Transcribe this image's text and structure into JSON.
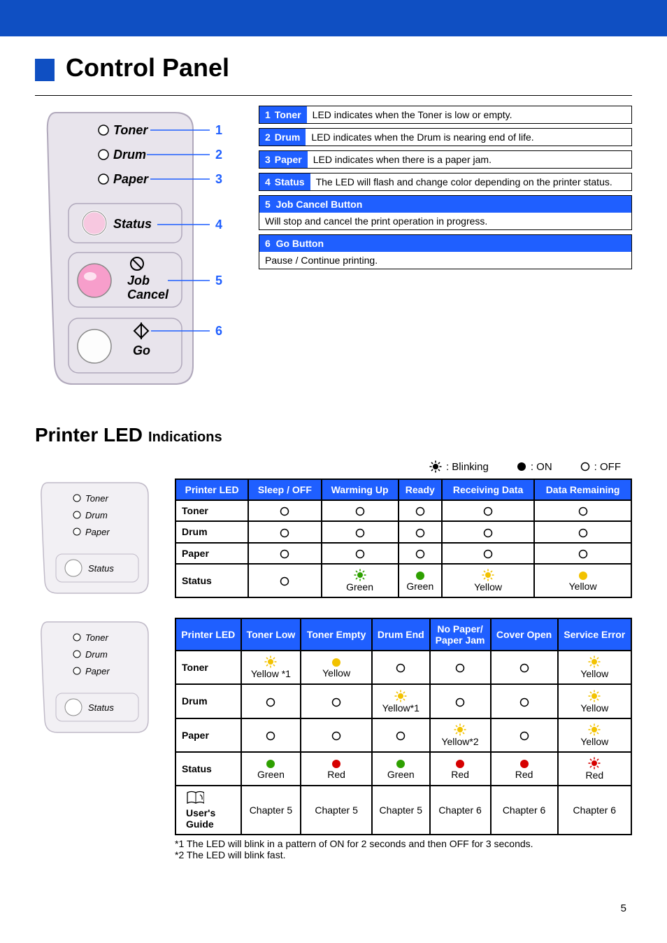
{
  "section_title": "Control Panel",
  "panel": {
    "labels": [
      "Toner",
      "Drum",
      "Paper",
      "Status",
      "Job",
      "Cancel",
      "Go"
    ],
    "label_style": {
      "font_style": "italic",
      "font_weight": "bold",
      "color": "#000"
    },
    "numbers": [
      "1",
      "2",
      "3",
      "4",
      "5",
      "6"
    ],
    "number_color": "#1f5fff",
    "body_fill": "#e8e4ec",
    "body_stroke": "#b0a8bb",
    "led_outline": "#000",
    "status_led_fill": "#f7c8e0",
    "button_fill": "#fdfdfd"
  },
  "descriptions": [
    {
      "num": "1",
      "label": "Toner",
      "text": "LED indicates when the Toner is low or empty."
    },
    {
      "num": "2",
      "label": "Drum",
      "text": "LED indicates when the Drum is nearing end of life."
    },
    {
      "num": "3",
      "label": "Paper",
      "text": "LED indicates when there is a paper jam."
    },
    {
      "num": "4",
      "label": "Status",
      "text": "The LED will flash and change color depending on the printer status."
    }
  ],
  "desc_full": [
    {
      "num": "5",
      "head": "Job Cancel Button",
      "body": "Will stop and cancel the print operation in progress."
    },
    {
      "num": "6",
      "head": "Go Button",
      "body": "Pause / Continue printing."
    }
  ],
  "desc_style": {
    "head_bg": "#1f5fff",
    "head_color": "#ffffff",
    "border_color": "#000000",
    "font_size": 14
  },
  "led_section": {
    "title": "Printer LED",
    "subtitle": "Indications"
  },
  "legend": {
    "items": [
      {
        "label": ": Blinking",
        "type": "blink"
      },
      {
        "label": ": ON",
        "type": "on"
      },
      {
        "label": ": OFF",
        "type": "off"
      }
    ]
  },
  "mini_panel": {
    "labels": [
      "Toner",
      "Drum",
      "Paper",
      "Status"
    ],
    "body_fill": "#f2f0f4",
    "body_stroke": "#c0bac8",
    "label_style": {
      "font_style": "italic",
      "color": "#000"
    }
  },
  "table1": {
    "headers": [
      "Printer LED",
      "Sleep / OFF",
      "Warming Up",
      "Ready",
      "Receiving Data",
      "Data Remaining"
    ],
    "rows": [
      {
        "head": "Toner",
        "cells": [
          {
            "t": "off"
          },
          {
            "t": "off"
          },
          {
            "t": "off"
          },
          {
            "t": "off"
          },
          {
            "t": "off"
          }
        ]
      },
      {
        "head": "Drum",
        "cells": [
          {
            "t": "off"
          },
          {
            "t": "off"
          },
          {
            "t": "off"
          },
          {
            "t": "off"
          },
          {
            "t": "off"
          }
        ]
      },
      {
        "head": "Paper",
        "cells": [
          {
            "t": "off"
          },
          {
            "t": "off"
          },
          {
            "t": "off"
          },
          {
            "t": "off"
          },
          {
            "t": "off"
          }
        ]
      },
      {
        "head": "Status",
        "cells": [
          {
            "t": "off"
          },
          {
            "t": "blink",
            "c": "#2ea000",
            "l": "Green"
          },
          {
            "t": "on",
            "c": "#2ea000",
            "l": "Green"
          },
          {
            "t": "blink",
            "c": "#f2c200",
            "l": "Yellow"
          },
          {
            "t": "on",
            "c": "#f2c200",
            "l": "Yellow"
          }
        ]
      }
    ]
  },
  "table2": {
    "headers": [
      "Printer LED",
      "Toner Low",
      "Toner Empty",
      "Drum End",
      "No Paper/\nPaper Jam",
      "Cover Open",
      "Service Error"
    ],
    "rows": [
      {
        "head": "Toner",
        "cells": [
          {
            "t": "blink",
            "c": "#f2c200",
            "l": "Yellow *1"
          },
          {
            "t": "on",
            "c": "#f2c200",
            "l": "Yellow"
          },
          {
            "t": "off"
          },
          {
            "t": "off"
          },
          {
            "t": "off"
          },
          {
            "t": "blink",
            "c": "#f2c200",
            "l": "Yellow"
          }
        ]
      },
      {
        "head": "Drum",
        "cells": [
          {
            "t": "off"
          },
          {
            "t": "off"
          },
          {
            "t": "blink",
            "c": "#f2c200",
            "l": "Yellow*1"
          },
          {
            "t": "off"
          },
          {
            "t": "off"
          },
          {
            "t": "blink",
            "c": "#f2c200",
            "l": "Yellow"
          }
        ]
      },
      {
        "head": "Paper",
        "cells": [
          {
            "t": "off"
          },
          {
            "t": "off"
          },
          {
            "t": "off"
          },
          {
            "t": "blink",
            "c": "#f2c200",
            "l": "Yellow*2"
          },
          {
            "t": "off"
          },
          {
            "t": "blink",
            "c": "#f2c200",
            "l": "Yellow"
          }
        ]
      },
      {
        "head": "Status",
        "cells": [
          {
            "t": "on",
            "c": "#2ea000",
            "l": "Green"
          },
          {
            "t": "on",
            "c": "#d60000",
            "l": "Red"
          },
          {
            "t": "on",
            "c": "#2ea000",
            "l": "Green"
          },
          {
            "t": "on",
            "c": "#d60000",
            "l": "Red"
          },
          {
            "t": "on",
            "c": "#d60000",
            "l": "Red"
          },
          {
            "t": "blink",
            "c": "#d60000",
            "l": "Red"
          }
        ]
      },
      {
        "head": "__UG__",
        "ug_label": "User's Guide",
        "cells": [
          {
            "t": "text",
            "l": "Chapter 5"
          },
          {
            "t": "text",
            "l": "Chapter 5"
          },
          {
            "t": "text",
            "l": "Chapter 5"
          },
          {
            "t": "text",
            "l": "Chapter 6"
          },
          {
            "t": "text",
            "l": "Chapter 6"
          },
          {
            "t": "text",
            "l": "Chapter 6"
          }
        ]
      }
    ]
  },
  "table_style": {
    "header_bg": "#1f5fff",
    "header_color": "#ffffff",
    "border_color": "#000000",
    "font_size": 14
  },
  "led_colors": {
    "off_stroke": "#000"
  },
  "notes": [
    "*1 The LED will blink in a pattern of ON for 2 seconds and then OFF for 3 seconds.",
    "*2 The LED will blink fast."
  ],
  "page_number": "5",
  "colors": {
    "top_bar": "#0f4fc2",
    "accent": "#1f5fff"
  }
}
